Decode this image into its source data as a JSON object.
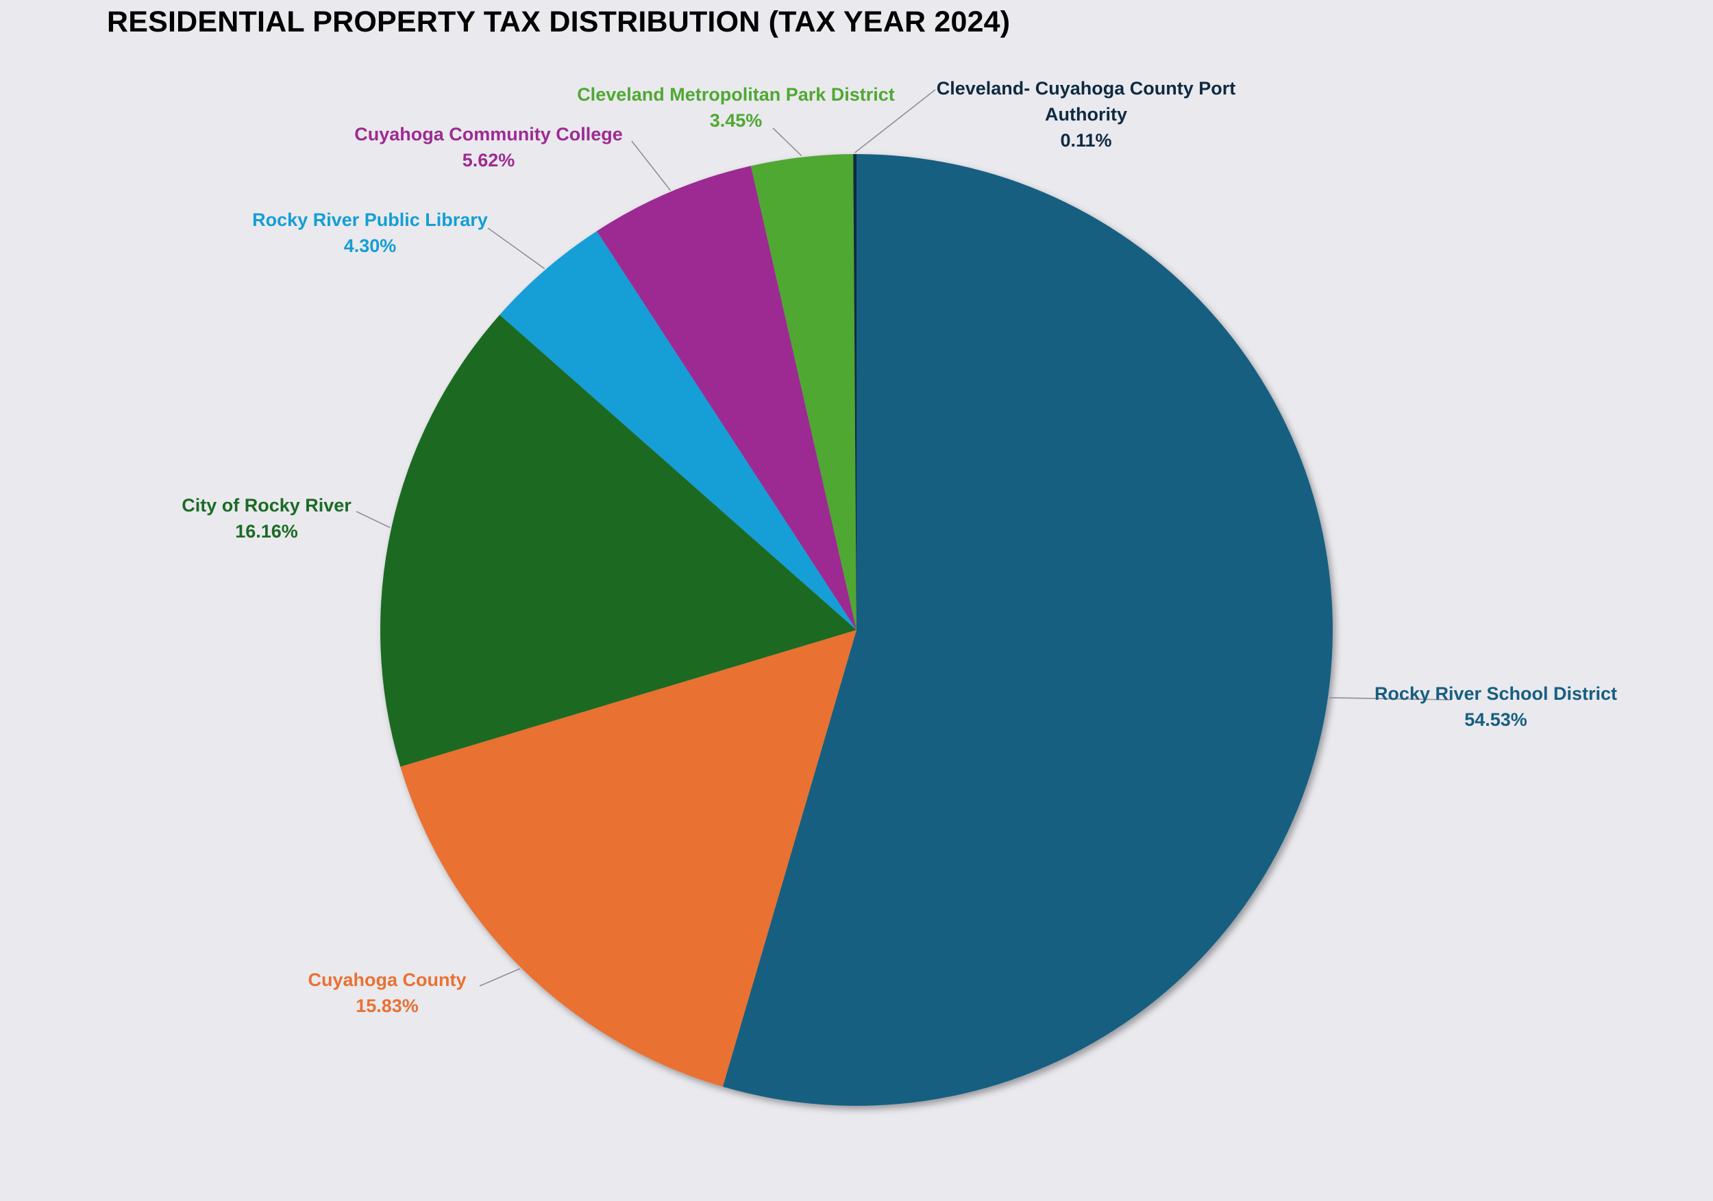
{
  "chart_data": {
    "type": "pie",
    "title": "RESIDENTIAL PROPERTY TAX DISTRIBUTION (TAX YEAR 2024)",
    "start_angle_deg": 0,
    "direction": "clockwise",
    "slices": [
      {
        "name": "Rocky River School District",
        "lines": [
          "Rocky River School District"
        ],
        "value": 54.53,
        "value_label": "54.53%",
        "color": "#175e81",
        "label_color": "#175e81"
      },
      {
        "name": "Cuyahoga County",
        "lines": [
          "Cuyahoga County"
        ],
        "value": 15.83,
        "value_label": "15.83%",
        "color": "#e97132",
        "label_color": "#e97132"
      },
      {
        "name": "City of Rocky River",
        "lines": [
          "City of Rocky River"
        ],
        "value": 16.16,
        "value_label": "16.16%",
        "color": "#1b6b24",
        "label_color": "#1b6b24"
      },
      {
        "name": "Rocky River Public Library",
        "lines": [
          "Rocky River Public Library"
        ],
        "value": 4.3,
        "value_label": "4.30%",
        "color": "#129ed7",
        "label_color": "#129ed7"
      },
      {
        "name": "Cuyahoga Community College",
        "lines": [
          "Cuyahoga Community College"
        ],
        "value": 5.62,
        "value_label": "5.62%",
        "color": "#9d2b92",
        "label_color": "#9d2b92"
      },
      {
        "name": "Cleveland Metropolitan Park District",
        "lines": [
          "Cleveland Metropolitan Park District"
        ],
        "value": 3.45,
        "value_label": "3.45%",
        "color": "#4fa832",
        "label_color": "#4fa832"
      },
      {
        "name": "Cleveland- Cuyahoga County Port Authority",
        "lines": [
          "Cleveland- Cuyahoga County Port",
          "Authority"
        ],
        "value": 0.11,
        "value_label": "0.11%",
        "color": "#0e2a41",
        "label_color": "#0e2a41"
      }
    ]
  }
}
